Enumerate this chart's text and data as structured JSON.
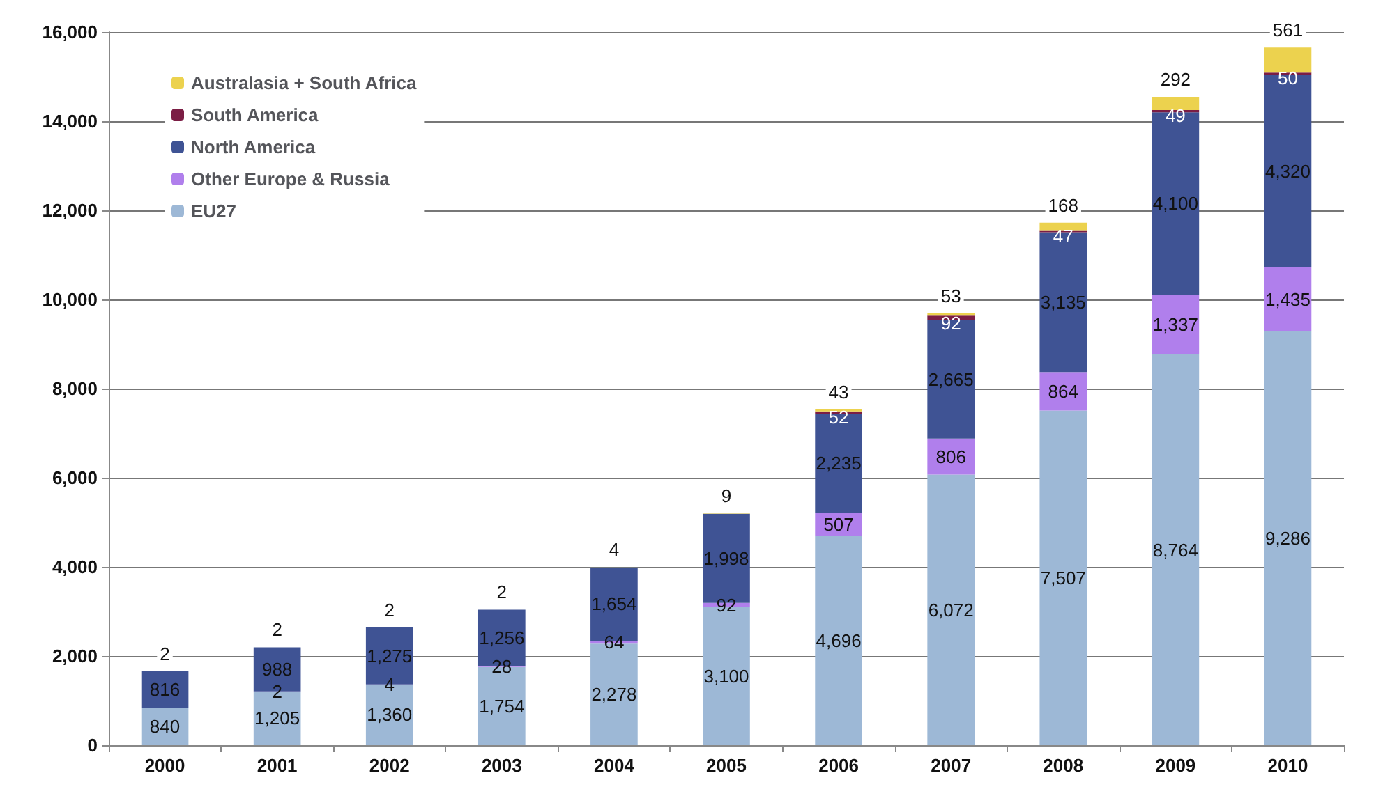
{
  "chart_data": {
    "type": "bar",
    "stacked": true,
    "categories": [
      "2000",
      "2001",
      "2002",
      "2003",
      "2004",
      "2005",
      "2006",
      "2007",
      "2008",
      "2009",
      "2010"
    ],
    "series": [
      {
        "name": "EU27",
        "color": "#9db8d6",
        "values": [
          840,
          1205,
          1360,
          1754,
          2278,
          3100,
          4696,
          6072,
          7507,
          8764,
          9286
        ],
        "value_labels": [
          "840",
          "1,205",
          "1,360",
          "1,754",
          "2,278",
          "3,100",
          "4,696",
          "6,072",
          "7,507",
          "8,764",
          "9,286"
        ]
      },
      {
        "name": "Other Europe & Russia",
        "color": "#b07fec",
        "values": [
          null,
          2,
          4,
          28,
          64,
          92,
          507,
          806,
          864,
          1337,
          1435
        ],
        "value_labels": [
          null,
          "2",
          "4",
          "28",
          "64",
          "92",
          "507",
          "806",
          "864",
          "1,337",
          "1,435"
        ]
      },
      {
        "name": "North America",
        "color": "#3f5394",
        "values": [
          816,
          988,
          1275,
          1256,
          1654,
          1998,
          2235,
          2665,
          3135,
          4100,
          4320
        ],
        "value_labels": [
          "816",
          "988",
          "1,275",
          "1,256",
          "1,654",
          "1,998",
          "2,235",
          "2,665",
          "3,135",
          "4,100",
          "4,320"
        ]
      },
      {
        "name": "South America",
        "color": "#7b1d44",
        "values": [
          null,
          null,
          null,
          null,
          null,
          null,
          52,
          92,
          47,
          49,
          50
        ],
        "value_labels": [
          null,
          null,
          null,
          null,
          null,
          null,
          "52",
          "92",
          "47",
          "49",
          "50"
        ]
      },
      {
        "name": "Australasia + South Africa",
        "color": "#ecd24e",
        "values": [
          2,
          2,
          2,
          2,
          4,
          9,
          43,
          53,
          168,
          292,
          561
        ],
        "value_labels": [
          "2",
          "2",
          "2",
          "2",
          "4",
          "9",
          "43",
          "53",
          "168",
          "292",
          "561"
        ]
      }
    ],
    "ylim": [
      0,
      16000
    ],
    "yticks": [
      0,
      {
        "value": 2000,
        "label": "2,000"
      },
      {
        "value": 4000,
        "label": "4,000"
      },
      {
        "value": 6000,
        "label": "6,000"
      },
      {
        "value": 8000,
        "label": "8,000"
      },
      {
        "value": 10000,
        "label": "10,000"
      },
      {
        "value": 12000,
        "label": "12,000"
      },
      {
        "value": 14000,
        "label": "14,000"
      },
      {
        "value": 16000,
        "label": "16,000"
      }
    ],
    "grid": "y",
    "legend": "top left"
  }
}
